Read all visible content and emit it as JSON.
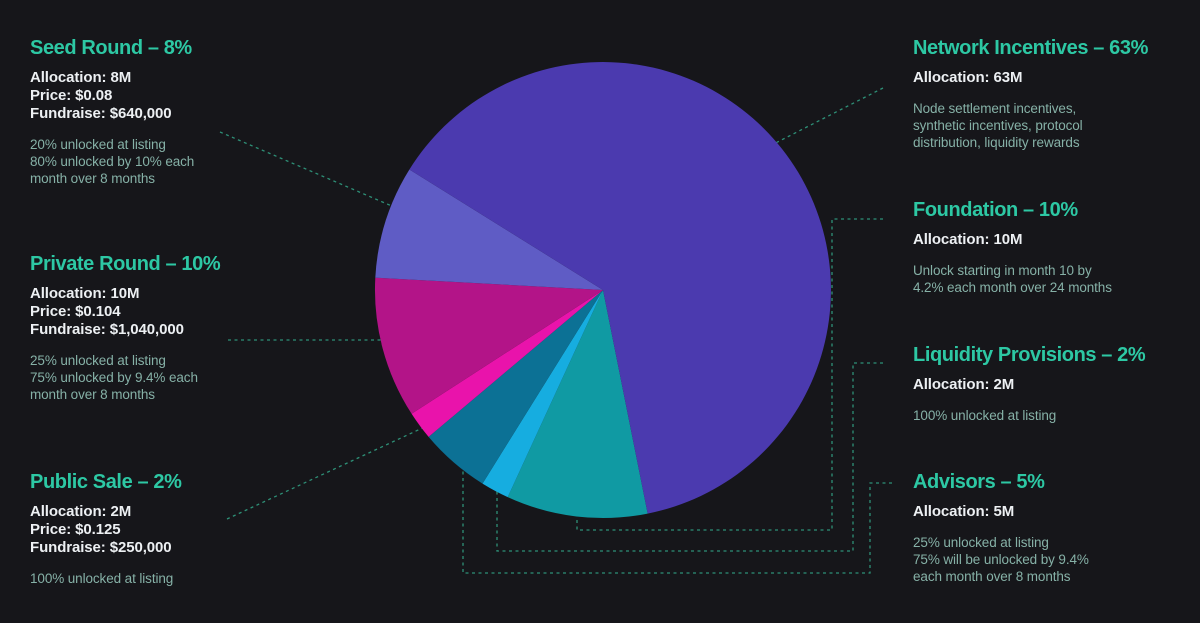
{
  "colors": {
    "background": "#16161a",
    "heading": "#2dc8a4",
    "stat_text": "#edf0f3",
    "note_text": "#86b1a7",
    "connector": "#2e9077"
  },
  "chart_data": {
    "type": "pie",
    "start_angle_deg": 168.7,
    "direction": "clockwise",
    "legend_position": "none",
    "labels_as_callouts": true,
    "slices": [
      {
        "label": "Foundation",
        "pct": 10,
        "allocation": "10M",
        "color": "#109aa3"
      },
      {
        "label": "Liquidity Provisions",
        "pct": 2,
        "allocation": "2M",
        "color": "#16ade0"
      },
      {
        "label": "Advisors",
        "pct": 5,
        "allocation": "5M",
        "color": "#0c7195"
      },
      {
        "label": "Public Sale",
        "pct": 2,
        "allocation": "2M",
        "color": "#e913ab"
      },
      {
        "label": "Private Round",
        "pct": 10,
        "allocation": "10M",
        "color": "#b31488"
      },
      {
        "label": "Seed Round",
        "pct": 8,
        "allocation": "8M",
        "color": "#5f5cc5"
      },
      {
        "label": "Network Incentives",
        "pct": 63,
        "allocation": "63M",
        "color": "#4b3aaf"
      }
    ]
  },
  "cards": {
    "seed": {
      "title": "Seed Round – 8%",
      "stats": [
        "Allocation: 8M",
        "Price: $0.08",
        "Fundraise: $640,000"
      ],
      "notes": [
        "20% unlocked at listing",
        "80% unlocked by 10% each",
        "month over 8 months"
      ]
    },
    "private": {
      "title": "Private Round – 10%",
      "stats": [
        "Allocation: 10M",
        "Price: $0.104",
        "Fundraise: $1,040,000"
      ],
      "notes": [
        "25% unlocked at listing",
        "75% unlocked by 9.4% each",
        "month over 8 months"
      ]
    },
    "public": {
      "title": "Public Sale – 2%",
      "stats": [
        "Allocation: 2M",
        "Price: $0.125",
        "Fundraise: $250,000"
      ],
      "notes": [
        "100% unlocked at listing"
      ]
    },
    "network": {
      "title": "Network Incentives – 63%",
      "stats": [
        "Allocation: 63M"
      ],
      "notes": [
        "Node settlement incentives,",
        "synthetic incentives, protocol",
        "distribution, liquidity rewards"
      ]
    },
    "foundation": {
      "title": "Foundation – 10%",
      "stats": [
        "Allocation: 10M"
      ],
      "notes": [
        "Unlock starting in month 10 by",
        "4.2% each month over 24 months"
      ]
    },
    "liquidity": {
      "title": "Liquidity Provisions – 2%",
      "stats": [
        "Allocation: 2M"
      ],
      "notes": [
        "100% unlocked at listing"
      ]
    },
    "advisors": {
      "title": "Advisors – 5%",
      "stats": [
        "Allocation: 5M"
      ],
      "notes": [
        "25% unlocked at listing",
        "75% will be unlocked by 9.4%",
        "each month over 8 months"
      ]
    }
  }
}
